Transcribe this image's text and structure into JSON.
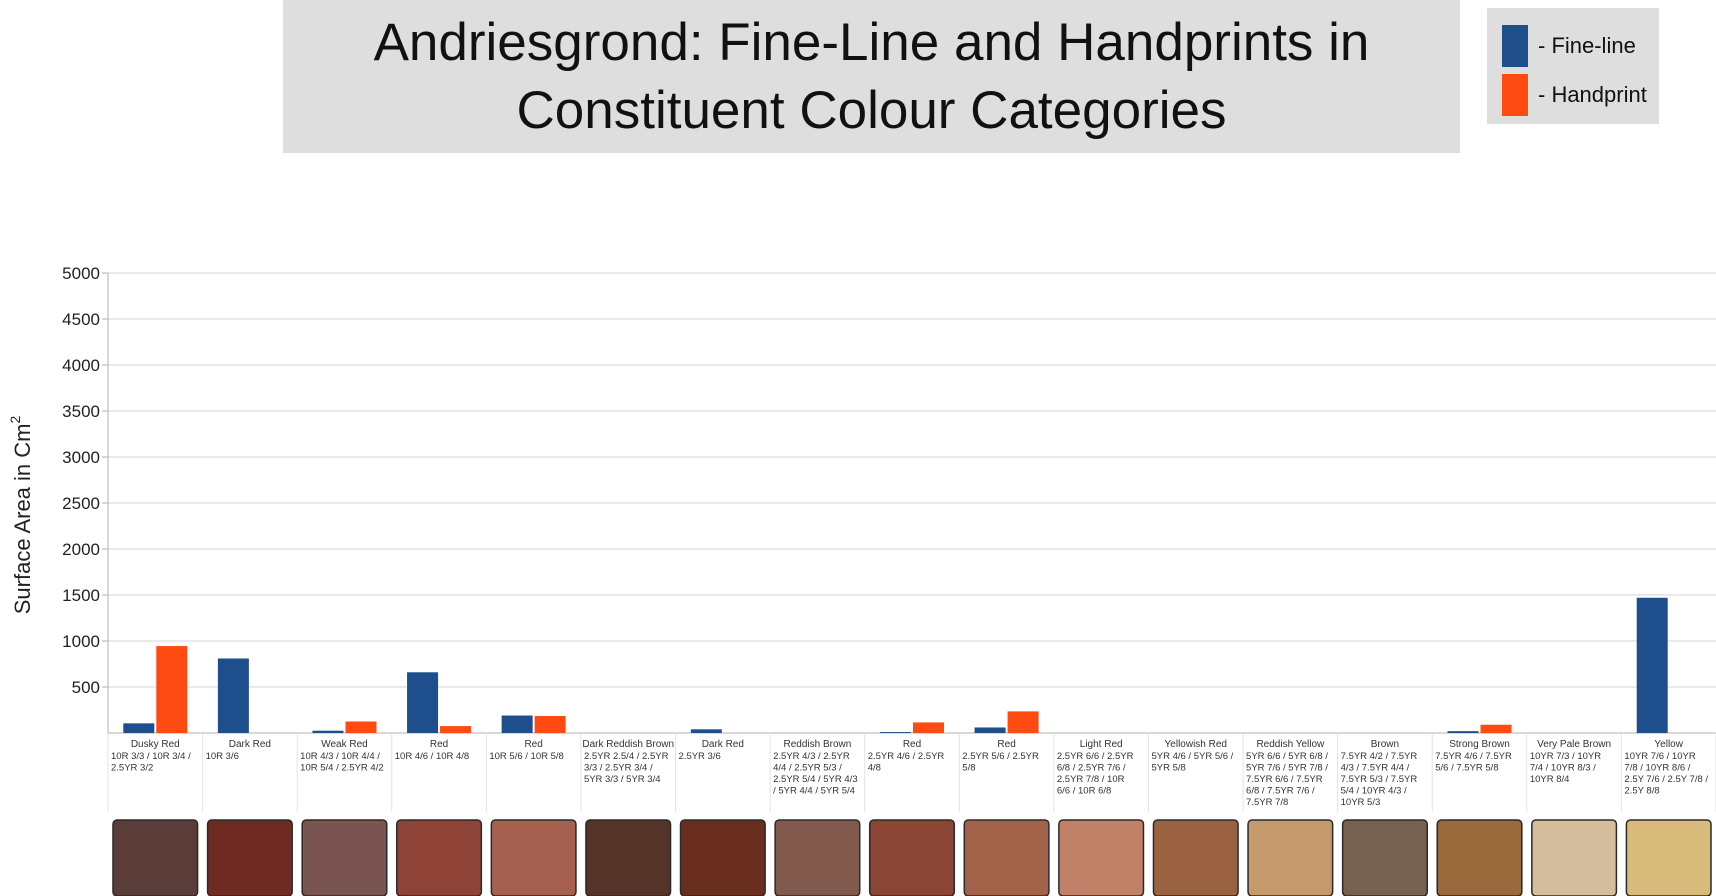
{
  "title_lines": [
    "Andriesgrond: Fine-Line and Handprints in",
    "Constituent Colour Categories"
  ],
  "legend": [
    {
      "label": "- Fine-line",
      "color": "#1f4e8c"
    },
    {
      "label": "- Handprint",
      "color": "#ff4a12"
    }
  ],
  "chart_data": {
    "type": "bar",
    "title": "Andriesgrond: Fine-Line and Handprints in Constituent Colour Categories",
    "ylabel": "Surface Area in Cm",
    "ylabel_superscript": "2",
    "ylim": [
      0,
      5000
    ],
    "yticks": [
      500,
      1000,
      1500,
      2000,
      2500,
      3000,
      3500,
      4000,
      4500,
      5000
    ],
    "grid": true,
    "legend_position": "top-right",
    "categories": [
      {
        "name": "Dusky Red",
        "codes": [
          "10R 3/3 / 10R 3/4  /",
          "2.5YR 3/2"
        ],
        "swatch": "#5a3d38"
      },
      {
        "name": "Dark Red",
        "codes": [
          "10R 3/6"
        ],
        "swatch": "#6f2a22"
      },
      {
        "name": "Weak Red",
        "codes": [
          "10R 4/3 / 10R 4/4 /",
          "10R 5/4 / 2.5YR 4/2"
        ],
        "swatch": "#7a5450"
      },
      {
        "name": "Red",
        "codes": [
          "10R 4/6 / 10R 4/8"
        ],
        "swatch": "#8f4236"
      },
      {
        "name": "Red",
        "codes": [
          "10R 5/6 / 10R 5/8"
        ],
        "swatch": "#a5604f"
      },
      {
        "name": "Dark Reddish Brown",
        "codes": [
          "2.5YR 2.5/4 / 2.5YR",
          "3/3 / 2.5YR 3/4 /",
          "5YR 3/3 / 5YR 3/4"
        ],
        "swatch": "#553328"
      },
      {
        "name": "Dark Red",
        "codes": [
          "2.5YR 3/6"
        ],
        "swatch": "#6a2e1e"
      },
      {
        "name": "Reddish Brown",
        "codes": [
          "2.5YR 4/3 / 2.5YR",
          "4/4 / 2.5YR 5/3 /",
          "2.5YR 5/4 / 5YR 4/3",
          "/ 5YR 4/4 / 5YR 5/4"
        ],
        "swatch": "#81594d"
      },
      {
        "name": "Red",
        "codes": [
          "2.5YR 4/6 / 2.5YR",
          "4/8"
        ],
        "swatch": "#8a4535"
      },
      {
        "name": "Red",
        "codes": [
          "2.5YR 5/6 / 2.5YR",
          "5/8"
        ],
        "swatch": "#a2624a"
      },
      {
        "name": "Light Red",
        "codes": [
          "2.5YR 6/6 / 2.5YR",
          "6/8 / 2.5YR 7/6 /",
          "2.5YR 7/8 / 10R",
          "6/6 / 10R 6/8"
        ],
        "swatch": "#c08168"
      },
      {
        "name": "Yellowish Red",
        "codes": [
          "5YR 4/6 / 5YR 5/6 /",
          "5YR 5/8"
        ],
        "swatch": "#9a6240"
      },
      {
        "name": "Reddish Yellow",
        "codes": [
          "5YR 6/6 / 5YR 6/8 /",
          "5YR 7/6 / 5YR 7/8 /",
          "7.5YR 6/6 / 7.5YR",
          "6/8 / 7.5YR 7/6 /",
          "7.5YR 7/8"
        ],
        "swatch": "#c79a6e"
      },
      {
        "name": "Brown",
        "codes": [
          "7.5YR 4/2 / 7.5YR",
          "4/3 / 7.5YR 4/4 /",
          "7.5YR 5/3 / 7.5YR",
          "5/4 / 10YR 4/3 /",
          "10YR 5/3"
        ],
        "swatch": "#76604f"
      },
      {
        "name": "Strong Brown",
        "codes": [
          "7.5YR 4/6 / 7.5YR",
          "5/6 / 7.5YR 5/8"
        ],
        "swatch": "#9a6a3c"
      },
      {
        "name": "Very Pale Brown",
        "codes": [
          "10YR 7/3 / 10YR",
          "7/4 / 10YR 8/3 /",
          "10YR 8/4"
        ],
        "swatch": "#d3bd9c"
      },
      {
        "name": "Yellow",
        "codes": [
          "10YR 7/6 / 10YR",
          "7/8 / 10YR 8/6 /",
          "2.5Y 7/6 / 2.5Y 7/8 /",
          "2.5Y 8/8"
        ],
        "swatch": "#d8bb7a"
      }
    ],
    "series": [
      {
        "name": "Fine-line",
        "color": "#1f4e8c",
        "values": [
          105,
          810,
          25,
          660,
          190,
          0,
          40,
          0,
          10,
          60,
          0,
          0,
          0,
          0,
          20,
          0,
          1470
        ]
      },
      {
        "name": "Handprint",
        "color": "#ff4a12",
        "values": [
          945,
          0,
          125,
          75,
          185,
          0,
          0,
          0,
          115,
          235,
          0,
          0,
          0,
          0,
          90,
          0,
          0
        ]
      }
    ]
  }
}
